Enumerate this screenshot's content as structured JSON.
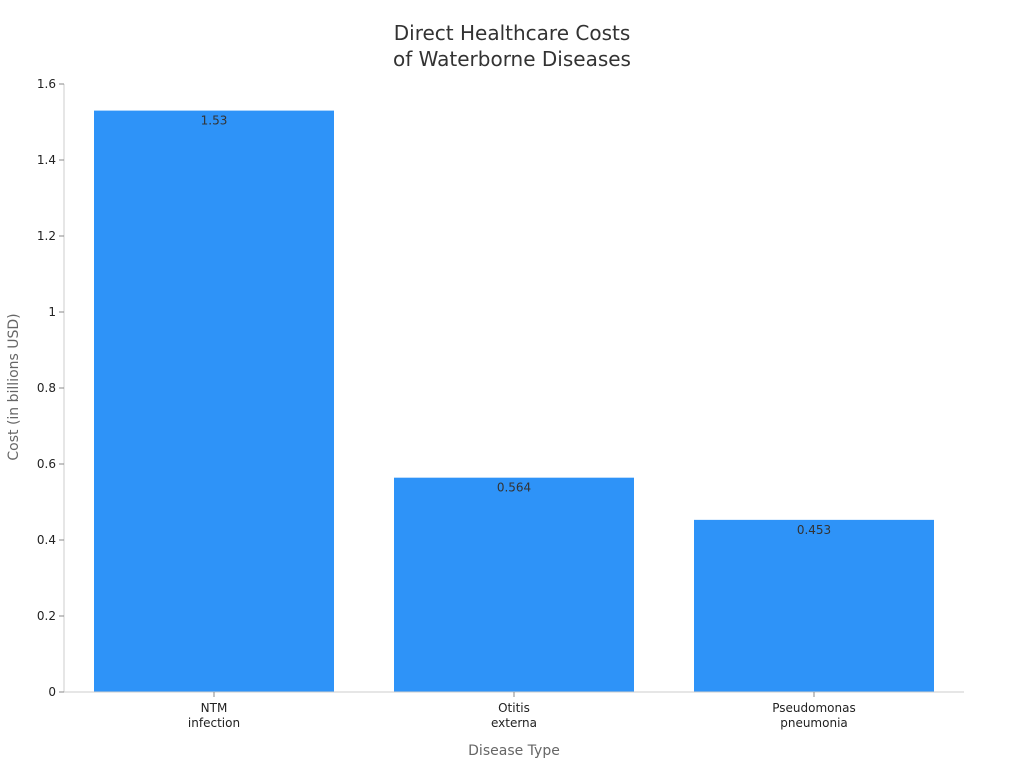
{
  "chart_data": {
    "type": "bar",
    "title": [
      "Direct Healthcare Costs",
      "of Waterborne Diseases"
    ],
    "xlabel": "Disease Type",
    "ylabel": "Cost (in billions USD)",
    "categories": [
      [
        "NTM",
        "infection"
      ],
      [
        "Otitis",
        "externa"
      ],
      [
        "Pseudomonas",
        "pneumonia"
      ]
    ],
    "values": [
      1.53,
      0.564,
      0.453
    ],
    "data_labels": [
      "1.53",
      "0.564",
      "0.453"
    ],
    "ylim": [
      0,
      1.6
    ],
    "yticks": [
      0,
      0.2,
      0.4,
      0.6,
      0.8,
      1,
      1.2,
      1.4,
      1.6
    ],
    "ytick_labels": [
      "0",
      "0.2",
      "0.4",
      "0.6",
      "0.8",
      "1",
      "1.2",
      "1.4",
      "1.6"
    ],
    "grid": false,
    "legend": "none",
    "colors": {
      "bar": "#2e93f8",
      "axis": "#cccccc"
    }
  }
}
